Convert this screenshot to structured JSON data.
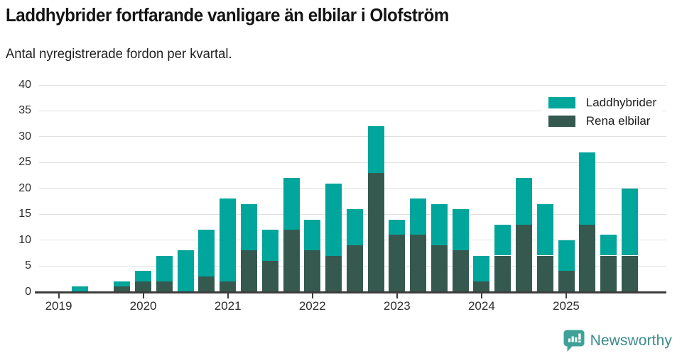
{
  "header": {
    "title": "Laddhybrider fortfarande vanligare än elbilar i Olofström",
    "subtitle": "Antal nyregistrerade fordon per kvartal."
  },
  "legend": {
    "items": [
      {
        "label": "Laddhybrider",
        "color": "#00a59c"
      },
      {
        "label": "Rena elbilar",
        "color": "#36594f"
      }
    ]
  },
  "footer": {
    "brand": "Newsworthy",
    "brand_color": "#3e8c8c",
    "icon": "newsworthy-speech-bubble-chart-icon",
    "icon_color": "#3fa297"
  },
  "chart_data": {
    "type": "bar",
    "stacked": true,
    "title": "Laddhybrider fortfarande vanligare än elbilar i Olofström",
    "subtitle": "Antal nyregistrerade fordon per kvartal.",
    "xlabel": "",
    "ylabel": "",
    "ylim": [
      0,
      40
    ],
    "yticks": [
      0,
      5,
      10,
      15,
      20,
      25,
      30,
      35,
      40
    ],
    "grid": "horizontal",
    "legend_position": "top-right",
    "x_year_labels": [
      "2019",
      "2020",
      "2021",
      "2022",
      "2023",
      "2024",
      "2025"
    ],
    "categories": [
      "2019 Q1",
      "2019 Q2",
      "2019 Q3",
      "2019 Q4",
      "2020 Q1",
      "2020 Q2",
      "2020 Q3",
      "2020 Q4",
      "2021 Q1",
      "2021 Q2",
      "2021 Q3",
      "2021 Q4",
      "2022 Q1",
      "2022 Q2",
      "2022 Q3",
      "2022 Q4",
      "2023 Q1",
      "2023 Q2",
      "2023 Q3",
      "2023 Q4",
      "2024 Q1",
      "2024 Q2",
      "2024 Q3",
      "2024 Q4",
      "2025 Q1",
      "2025 Q2",
      "2025 Q3",
      "2025 Q4"
    ],
    "stack_bottom_series": "Rena elbilar",
    "series": [
      {
        "name": "Laddhybrider",
        "color": "#00a59c",
        "values": [
          0,
          1,
          0,
          1,
          2,
          5,
          8,
          9,
          16,
          9,
          6,
          10,
          6,
          14,
          7,
          9,
          3,
          7,
          8,
          8,
          5,
          6,
          9,
          10,
          6,
          14,
          4,
          13
        ]
      },
      {
        "name": "Rena elbilar",
        "color": "#36594f",
        "values": [
          0,
          0,
          0,
          1,
          2,
          2,
          0,
          3,
          2,
          8,
          6,
          12,
          8,
          7,
          9,
          23,
          11,
          11,
          9,
          8,
          2,
          7,
          13,
          7,
          4,
          13,
          7,
          7
        ]
      }
    ],
    "totals": [
      0,
      1,
      0,
      2,
      4,
      7,
      8,
      12,
      18,
      17,
      12,
      22,
      14,
      21,
      16,
      32,
      14,
      18,
      17,
      16,
      7,
      13,
      22,
      17,
      10,
      27,
      11,
      20
    ]
  }
}
